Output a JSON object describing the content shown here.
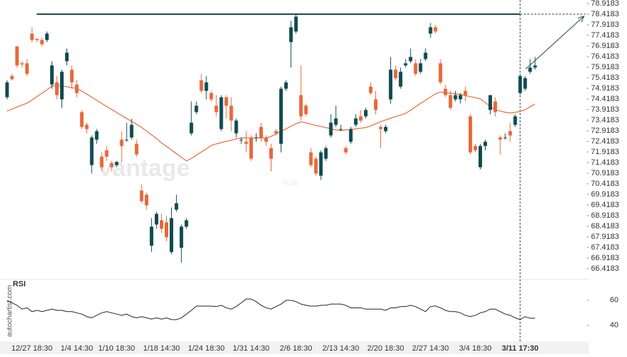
{
  "chart_data": {
    "type": "candlestick",
    "categories": [
      null,
      null,
      null,
      null,
      null,
      "12/27 18:30",
      null,
      null,
      null,
      null,
      null,
      null,
      null,
      null,
      "1/4 14:30",
      null,
      null,
      null,
      null,
      null,
      null,
      null,
      "1/10 18:30",
      null,
      null,
      null,
      null,
      null,
      null,
      null,
      null,
      "1/18 14:30",
      null,
      null,
      null,
      null,
      null,
      null,
      null,
      null,
      "1/24 18:30",
      null,
      null,
      null,
      null,
      null,
      null,
      null,
      null,
      "1/31 14:30",
      null,
      null,
      null,
      null,
      null,
      null,
      null,
      null,
      "2/6 18:30",
      null,
      null,
      null,
      null,
      null,
      null,
      null,
      null,
      "2/13 14:30",
      null,
      null,
      null,
      null,
      null,
      null,
      null,
      null,
      "2/20 18:30",
      null,
      null,
      null,
      null,
      null,
      null,
      null,
      null,
      "2/27 14:30",
      null,
      null,
      null,
      null,
      null,
      null,
      null,
      null,
      "3/4 18:30",
      null,
      null,
      null,
      null,
      null,
      null,
      null,
      null,
      "3/11 17:30",
      null,
      null,
      null
    ],
    "open": [
      74.5,
      75.5,
      76.9,
      76.1,
      76.1,
      77.5,
      77.25,
      77.2,
      77.2,
      75.1,
      75.2,
      74.4,
      76.2,
      75.8,
      75.1,
      73.8,
      73.2,
      71.3,
      72.5,
      71.7,
      72.0,
      71.4,
      71.3,
      72.5,
      72.5,
      72.6,
      72.3,
      70.1,
      69.9,
      67.5,
      68.5,
      68.7,
      68.6,
      67.2,
      69.2,
      67.4,
      68.4,
      72.8,
      73.8,
      75.3,
      74.8,
      74.7,
      74.1,
      73.0,
      74.5,
      74.1,
      72.8,
      72.5,
      72.4,
      72.6,
      72.6,
      73.1,
      72.6,
      72.1,
      72.9,
      72.3,
      74.9,
      77.1,
      77.6,
      74.6,
      74.1,
      71.9,
      71.6,
      70.8,
      71.6,
      72.7,
      73.2,
      73.0,
      72.1,
      72.4,
      73.2,
      73.6,
      73.6,
      75.0,
      74.4,
      73.1,
      72.9,
      74.4,
      75.8,
      75.0,
      76.0,
      76.2,
      76.1,
      75.7,
      76.3,
      77.5,
      77.8,
      76.1,
      74.9,
      74.6,
      74.4,
      74.4,
      74.8,
      73.6,
      72.2,
      71.2,
      72.2,
      73.9,
      74.3,
      72.6,
      72.6,
      72.9,
      73.2,
      74.7,
      74.9,
      75.7,
      75.9
    ],
    "high": [
      75.3,
      75.6,
      76.9,
      76.2,
      76.3,
      77.8,
      77.3,
      77.3,
      77.6,
      76.2,
      75.5,
      75.8,
      76.8,
      76.0,
      75.3,
      73.9,
      73.3,
      72.7,
      73.0,
      71.9,
      72.2,
      71.5,
      71.5,
      72.9,
      73.3,
      73.5,
      72.5,
      70.4,
      70.0,
      68.8,
      69.1,
      69.0,
      68.9,
      69.3,
      69.9,
      68.5,
      68.8,
      74.3,
      74.3,
      75.6,
      75.5,
      74.8,
      74.6,
      74.6,
      74.6,
      74.5,
      73.5,
      72.6,
      72.9,
      72.7,
      72.8,
      73.3,
      72.7,
      72.3,
      73.0,
      75.0,
      75.3,
      78.1,
      78.4,
      76.0,
      74.2,
      72.1,
      71.7,
      72.0,
      72.2,
      73.7,
      74.1,
      73.2,
      72.2,
      73.1,
      73.7,
      73.9,
      74.0,
      75.2,
      74.8,
      73.2,
      73.2,
      76.4,
      76.0,
      75.9,
      76.3,
      76.8,
      76.3,
      76.3,
      76.8,
      78.0,
      77.9,
      76.3,
      75.1,
      74.8,
      74.8,
      74.7,
      75.0,
      73.7,
      72.3,
      72.3,
      72.5,
      74.6,
      74.5,
      72.7,
      72.8,
      73.3,
      73.7,
      75.6,
      75.5,
      76.3,
      76.4
    ],
    "low": [
      74.4,
      75.3,
      75.9,
      75.9,
      75.5,
      77.1,
      77.1,
      76.9,
      77.1,
      74.9,
      74.4,
      74.0,
      76.0,
      74.9,
      74.5,
      73.0,
      72.8,
      70.9,
      72.3,
      71.0,
      71.5,
      71.0,
      71.2,
      71.4,
      72.4,
      72.5,
      71.7,
      69.5,
      69.2,
      67.2,
      68.3,
      68.1,
      67.7,
      67.1,
      69.1,
      66.7,
      68.3,
      72.7,
      73.7,
      74.7,
      74.4,
      74.3,
      73.6,
      72.9,
      73.5,
      72.9,
      72.6,
      72.3,
      71.9,
      71.5,
      72.4,
      72.4,
      72.2,
      71.0,
      72.7,
      71.9,
      74.8,
      75.9,
      77.5,
      73.4,
      73.6,
      71.2,
      70.8,
      70.6,
      71.5,
      72.6,
      73.1,
      72.9,
      71.8,
      72.3,
      73.1,
      73.3,
      73.5,
      74.6,
      73.7,
      72.1,
      72.8,
      74.2,
      75.3,
      74.9,
      75.9,
      76.1,
      75.5,
      75.6,
      76.2,
      77.3,
      77.5,
      75.1,
      74.5,
      73.9,
      74.3,
      74.2,
      74.3,
      71.8,
      71.9,
      71.1,
      72.0,
      73.7,
      73.6,
      71.8,
      72.5,
      72.4,
      73.1,
      74.6,
      74.8,
      75.6,
      75.8
    ],
    "close": [
      75.2,
      75.35,
      76.0,
      76.05,
      75.6,
      77.2,
      77.2,
      77.0,
      77.5,
      76.0,
      74.6,
      75.7,
      76.6,
      75.2,
      74.7,
      73.1,
      73.0,
      72.6,
      72.9,
      71.2,
      71.7,
      71.2,
      71.45,
      72.2,
      72.5,
      73.2,
      71.8,
      69.6,
      69.4,
      68.4,
      69.0,
      68.3,
      67.9,
      68.8,
      69.5,
      68.4,
      68.7,
      73.3,
      74.1,
      74.8,
      75.2,
      74.4,
      73.8,
      74.5,
      74.1,
      73.4,
      73.4,
      72.5,
      72.3,
      71.6,
      72.6,
      72.6,
      72.4,
      71.6,
      72.8,
      74.9,
      75.2,
      77.8,
      78.3,
      73.6,
      73.7,
      71.3,
      70.9,
      71.9,
      72.1,
      73.3,
      73.5,
      73.0,
      71.9,
      73.0,
      73.5,
      73.4,
      73.9,
      74.7,
      73.9,
      73.0,
      73.1,
      75.8,
      75.4,
      75.7,
      76.1,
      76.4,
      75.6,
      76.1,
      76.6,
      77.8,
      77.6,
      75.2,
      74.6,
      74.0,
      74.6,
      74.6,
      74.6,
      71.9,
      72.0,
      72.2,
      72.4,
      74.6,
      73.8,
      72.5,
      72.6,
      72.7,
      73.6,
      75.5,
      75.4,
      75.9,
      76.0
    ],
    "up_color": "#0f4b52",
    "down_color": "#e8683a",
    "ylim": [
      66.0183,
      78.9183
    ],
    "yticks": [
      66.4183,
      66.9183,
      67.4183,
      67.9183,
      68.4183,
      68.9183,
      69.4183,
      69.9183,
      70.4183,
      70.9183,
      71.4183,
      71.9183,
      72.4183,
      72.9183,
      73.4183,
      73.9183,
      74.4183,
      74.9183,
      75.4183,
      75.9183,
      76.4183,
      76.9183,
      77.4183,
      77.9183,
      78.4183,
      78.9183
    ],
    "moving_average": {
      "color": "#e8683a",
      "values": [
        73.85,
        73.94,
        74.04,
        74.13,
        74.22,
        74.37,
        74.53,
        74.69,
        74.85,
        75.03,
        75.06,
        75.02,
        75.0,
        74.95,
        74.92,
        74.79,
        74.65,
        74.5,
        74.35,
        74.21,
        74.06,
        73.92,
        73.78,
        73.64,
        73.5,
        73.36,
        73.22,
        73.08,
        72.9,
        72.73,
        72.55,
        72.35,
        72.18,
        72.01,
        71.84,
        71.67,
        71.5,
        71.61,
        71.77,
        71.92,
        72.07,
        72.23,
        72.3,
        72.36,
        72.42,
        72.47,
        72.54,
        72.58,
        72.58,
        72.58,
        72.58,
        72.58,
        72.58,
        72.65,
        72.77,
        72.89,
        73.01,
        73.13,
        73.25,
        73.34,
        73.29,
        73.23,
        73.17,
        73.12,
        73.07,
        73.01,
        72.96,
        72.93,
        72.96,
        72.98,
        73.01,
        73.04,
        73.07,
        73.15,
        73.25,
        73.35,
        73.43,
        73.51,
        73.59,
        73.66,
        73.74,
        73.89,
        74.05,
        74.21,
        74.36,
        74.51,
        74.66,
        74.74,
        74.72,
        74.69,
        74.67,
        74.63,
        74.58,
        74.53,
        74.48,
        74.42,
        74.25,
        74.07,
        73.91,
        73.85,
        73.79,
        73.76,
        73.79,
        73.83,
        73.91,
        74.05,
        74.18
      ]
    },
    "level": {
      "value": 78.4183,
      "color": "#1d4a4f"
    },
    "rsi": {
      "title": "RSI",
      "color": "#222222",
      "ylim": [
        30,
        74
      ],
      "yticks": [
        60,
        40
      ],
      "values": [
        60,
        58,
        56,
        53,
        54,
        51,
        52,
        51,
        52,
        53,
        52,
        52,
        51,
        51,
        50,
        49,
        47,
        46,
        48,
        50,
        51,
        50,
        49,
        48,
        49,
        47,
        46,
        47,
        46,
        45,
        46,
        45,
        46,
        44.6,
        44.6,
        46,
        49,
        52,
        55.4,
        55.4,
        55.4,
        55.4,
        55,
        56,
        54,
        53,
        55,
        58,
        61,
        61,
        59,
        56,
        54,
        53,
        55,
        57,
        60,
        60,
        59,
        57,
        56,
        55.4,
        55.4,
        56,
        56,
        57,
        57,
        57,
        56,
        54,
        54,
        54,
        53,
        53,
        53,
        53,
        52,
        54,
        54,
        55,
        55,
        56,
        55,
        53,
        51,
        55,
        55.5,
        54,
        52,
        51,
        51,
        50,
        48,
        47,
        48,
        50,
        51,
        53,
        53,
        51,
        49,
        48,
        46,
        44.6,
        47,
        45.7,
        45.7
      ]
    },
    "source": "autochartist.com",
    "watermark": "vantage",
    "watermark_sub": "PLUS"
  }
}
